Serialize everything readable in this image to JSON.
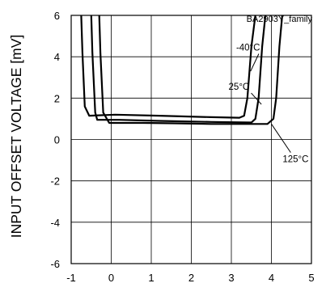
{
  "chart_data": {
    "type": "line",
    "title": "",
    "annotation_top": "BA2903Y_family",
    "xlabel": "",
    "ylabel": "INPUT OFFSET VOLTAGE [mV]",
    "xlim": [
      -1,
      5
    ],
    "ylim": [
      -6,
      6
    ],
    "xticks": [
      -1,
      0,
      1,
      2,
      3,
      4,
      5
    ],
    "yticks": [
      -6,
      -4,
      -2,
      0,
      2,
      4,
      6
    ],
    "grid": true,
    "legend": "none",
    "series": [
      {
        "label_text": "-40°C",
        "x": [
          -0.75,
          -0.72,
          -0.66,
          -0.55,
          0.1,
          1.2,
          2.5,
          3.2,
          3.32,
          3.4,
          3.5,
          3.6
        ],
        "y": [
          6,
          4.2,
          1.6,
          1.15,
          1.2,
          1.15,
          1.08,
          1.05,
          1.15,
          2.0,
          4.5,
          6
        ]
      },
      {
        "label_text": "25°C",
        "x": [
          -0.5,
          -0.47,
          -0.4,
          -0.35,
          0.2,
          1.2,
          2.5,
          3.5,
          3.6,
          3.68,
          3.77,
          3.85
        ],
        "y": [
          6,
          4.2,
          1.3,
          0.95,
          0.95,
          0.9,
          0.85,
          0.82,
          1.0,
          2.0,
          4.5,
          6
        ]
      },
      {
        "label_text": "125°C",
        "x": [
          -0.3,
          -0.27,
          -0.2,
          -0.05,
          0.8,
          1.6,
          2.5,
          3.9,
          4.05,
          4.12,
          4.2,
          4.27
        ],
        "y": [
          6,
          4.2,
          1.3,
          0.8,
          0.8,
          0.78,
          0.75,
          0.75,
          1.0,
          2.0,
          4.5,
          6
        ]
      }
    ],
    "labels": [
      {
        "text": "-40°C",
        "x": 3.12,
        "y": 4.3,
        "lx": 3.48,
        "ly": 3.3
      },
      {
        "text": "25°C",
        "x": 2.93,
        "y": 2.4,
        "lx": 3.75,
        "ly": 1.7
      },
      {
        "text": "125°C",
        "x": 4.28,
        "y": -1.1,
        "lx": 4.0,
        "ly": 0.75
      }
    ]
  }
}
